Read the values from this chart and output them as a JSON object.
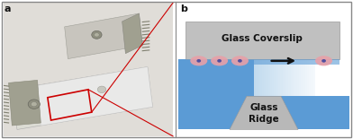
{
  "fig_width": 3.92,
  "fig_height": 1.55,
  "dpi": 100,
  "background_color": "#ffffff",
  "border_color": "#888888",
  "panel_a_label": "a",
  "panel_b_label": "b",
  "coverslip_color": "#c0c0c0",
  "coverslip_text": "Glass Coverslip",
  "ridge_color": "#b8b8b8",
  "ridge_text": "Glass\nRidge",
  "channel_color": "#5b9bd5",
  "cell_body_color": "#e8a0a8",
  "cell_nucleus_color": "#5050a0",
  "arrow_color": "#111111",
  "text_color": "#111111",
  "label_fontsize": 8,
  "diagram_fontsize": 7.5,
  "red_box_color": "#cc0000",
  "photo_bg": "#d8d5cc",
  "panel_split": 0.5
}
